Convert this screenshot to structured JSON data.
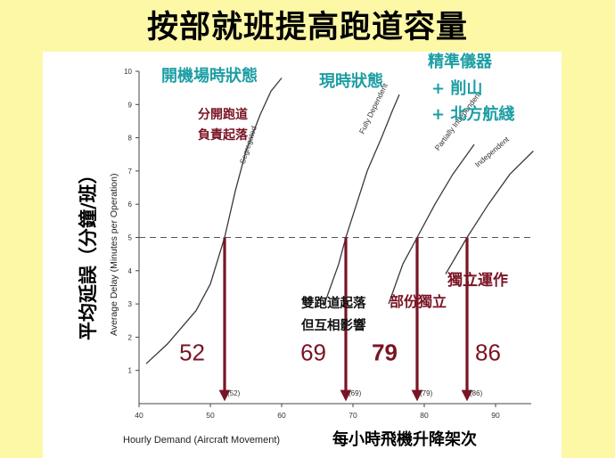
{
  "title": "按部就班提高跑道容量",
  "annotations": {
    "state_open_machine": "開機場時狀態",
    "state_current": "現時狀態",
    "precision_instruments": "精準儀器",
    "plus_xiaoshan": "+ 削山",
    "plus_north_route": "+ 北方航綫",
    "split_line1": "分開跑道",
    "split_line2": "負責起落",
    "dual_line1": "雙跑道起落",
    "dual_line2": "但互相影響",
    "partial_independent": "部份獨立",
    "independent_operation": "獨立運作",
    "y_axis_chinese": "平均延誤（分鐘/班）",
    "x_axis_chinese": "每小時飛機升降架次"
  },
  "colors": {
    "background": "#fdf8a6",
    "panel": "#ffffff",
    "teal": "#1d9ea3",
    "maroon": "#7a1424",
    "curve": "#3a3a3a"
  },
  "chart_data": {
    "type": "line",
    "xlabel": "Hourly Demand (Aircraft Movement)",
    "ylabel": "Average Delay (Minutes per Operation)",
    "xlim": [
      40,
      95
    ],
    "ylim": [
      0,
      10
    ],
    "x_ticks": [
      "40",
      "50",
      "60",
      "70",
      "80",
      "90"
    ],
    "y_ticks": [
      "1",
      "2",
      "3",
      "4",
      "5",
      "6",
      "7",
      "8",
      "9",
      "10"
    ],
    "threshold_delay": 5,
    "series": [
      {
        "name": "Segregated",
        "points": [
          [
            41,
            1.2
          ],
          [
            44,
            1.8
          ],
          [
            48,
            2.8
          ],
          [
            50,
            3.6
          ],
          [
            52,
            5.0
          ],
          [
            53.5,
            6.4
          ],
          [
            55,
            7.6
          ],
          [
            57,
            8.7
          ],
          [
            58.5,
            9.4
          ],
          [
            60,
            9.8
          ]
        ]
      },
      {
        "name": "Fully Dependent",
        "points": [
          [
            66,
            3.0
          ],
          [
            68,
            4.2
          ],
          [
            69,
            5.0
          ],
          [
            70.5,
            6.0
          ],
          [
            72,
            7.0
          ],
          [
            74,
            8.0
          ],
          [
            75.5,
            8.8
          ],
          [
            76.5,
            9.3
          ]
        ]
      },
      {
        "name": "Partially Independent",
        "points": [
          [
            75,
            3.0
          ],
          [
            77,
            4.2
          ],
          [
            79,
            5.0
          ],
          [
            81.5,
            6.0
          ],
          [
            84,
            6.9
          ],
          [
            87,
            7.8
          ]
        ]
      },
      {
        "name": "Independent",
        "points": [
          [
            83,
            3.9
          ],
          [
            86,
            5.0
          ],
          [
            89,
            6.0
          ],
          [
            92,
            6.9
          ],
          [
            95.3,
            7.6
          ]
        ]
      }
    ],
    "capacities": [
      {
        "label": "52",
        "axis_label": "(52)",
        "x": 52
      },
      {
        "label": "69",
        "axis_label": "(69)",
        "x": 69
      },
      {
        "label": "79",
        "axis_label": "(79)",
        "x": 79
      },
      {
        "label": "86",
        "axis_label": "(86)",
        "x": 86
      }
    ]
  }
}
